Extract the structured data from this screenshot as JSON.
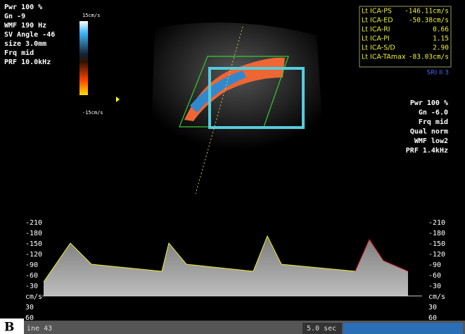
{
  "panel_label": "B",
  "left_params": [
    "Pwr 100 %",
    "Gn -9",
    "WMF 190 Hz",
    "SV Angle -46",
    "size 3.0mm",
    "Frq mid",
    "PRF 10.0kHz"
  ],
  "color_scale": {
    "top": "15cm/s",
    "bottom": "-15cm/s"
  },
  "measurements": [
    [
      "Lt ICA-PS",
      "-146.11cm/s"
    ],
    [
      "Lt ICA-ED",
      "-50.38cm/s"
    ],
    [
      "Lt ICA-RI",
      "0.66"
    ],
    [
      "Lt ICA-PI",
      "1.15"
    ],
    [
      "Lt ICA-S/D",
      "2.90"
    ],
    [
      "Lt ICA-TAmax",
      "-83.03cm/s"
    ]
  ],
  "sri": "SRI II 3",
  "right_params": [
    "Pwr 100 %",
    "Gn -6.0",
    "Frq mid",
    "Qual norm",
    "WMF low2",
    "PRF 1.4kHz"
  ],
  "velocity_scale": [
    "-210",
    "-180",
    "-150",
    "-120",
    "-90",
    "-60",
    "-30",
    "cm/s",
    "30",
    "60"
  ],
  "footer": {
    "left": "ine 43",
    "time": "5.0 sec"
  }
}
